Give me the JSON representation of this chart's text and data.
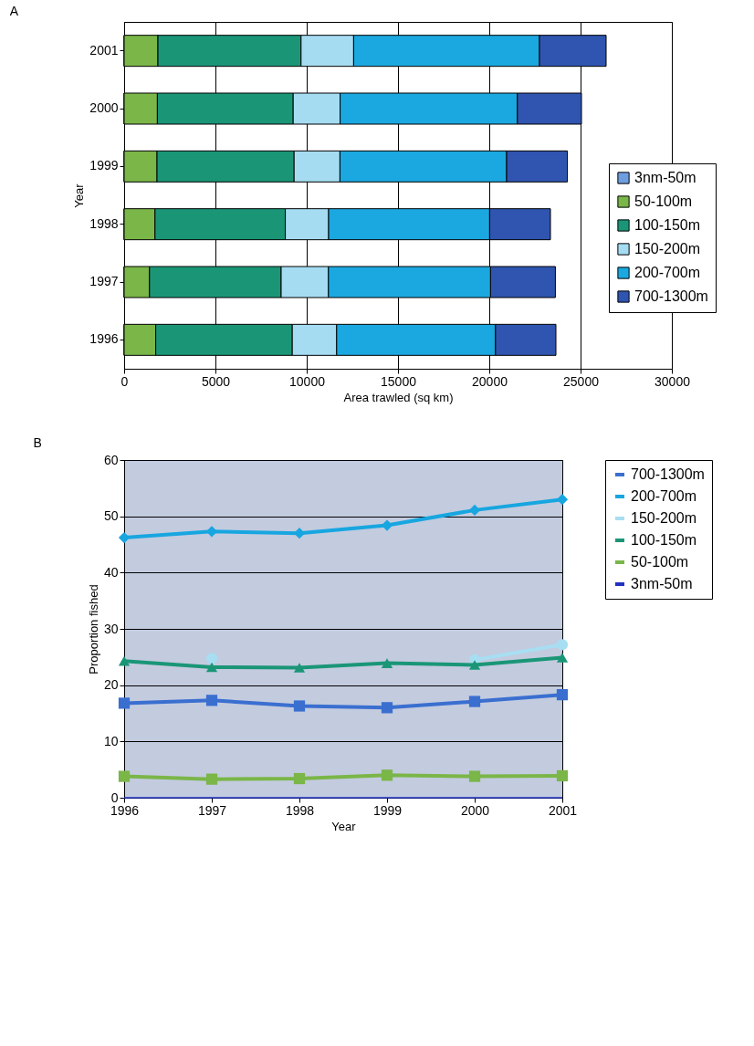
{
  "chart_data": [
    {
      "type": "bar",
      "orientation": "horizontal",
      "stacked": true,
      "annotations": [
        "A"
      ],
      "xlabel": "Area trawled (sq km)",
      "ylabel": "Year",
      "categories": [
        "2001",
        "2000",
        "1999",
        "1998",
        "1997",
        "1996"
      ],
      "series": [
        {
          "name": "3nm-50m",
          "color": "#6f9ee0",
          "values": [
            0,
            0,
            0,
            0,
            0,
            0
          ]
        },
        {
          "name": "50-100m",
          "color": "#7ab648",
          "values": [
            1850,
            1820,
            1800,
            1690,
            1390,
            1730
          ]
        },
        {
          "name": "100-150m",
          "color": "#1a9677",
          "values": [
            7840,
            7440,
            7510,
            7140,
            7210,
            7480
          ]
        },
        {
          "name": "150-200m",
          "color": "#a6dcf2",
          "values": [
            2880,
            2570,
            2510,
            2370,
            2590,
            2430
          ]
        },
        {
          "name": "200-700m",
          "color": "#1ba8e0",
          "values": [
            10180,
            9710,
            9130,
            8820,
            8880,
            8700
          ]
        },
        {
          "name": "700-1300m",
          "color": "#2f55b0",
          "values": [
            3650,
            3510,
            3330,
            3330,
            3550,
            3310
          ]
        }
      ],
      "xlim": [
        0,
        30000
      ],
      "xticks": [
        0,
        5000,
        10000,
        15000,
        20000,
        25000,
        30000
      ],
      "grid": "x",
      "legend": "bottom right"
    },
    {
      "type": "line",
      "annotations": [
        "B"
      ],
      "xlabel": "Year",
      "ylabel": "Proportion fished",
      "x": [
        1996,
        1997,
        1998,
        1999,
        2000,
        2001
      ],
      "series": [
        {
          "name": "700-1300m",
          "color": "#3a6fd0",
          "marker": "square",
          "values": [
            16.8,
            17.3,
            16.3,
            16.0,
            17.1,
            18.3
          ]
        },
        {
          "name": "200-700m",
          "color": "#17a6e0",
          "marker": "diamond",
          "values": [
            46.2,
            47.3,
            47.0,
            48.4,
            51.1,
            53.0
          ]
        },
        {
          "name": "150-200m",
          "color": "#a8def2",
          "marker": "circle",
          "values": [
            null,
            24.7,
            null,
            null,
            24.5,
            27.2
          ]
        },
        {
          "name": "100-150m",
          "color": "#1a9677",
          "marker": "triangle",
          "values": [
            24.3,
            23.2,
            23.1,
            23.9,
            23.6,
            24.9
          ]
        },
        {
          "name": "50-100m",
          "color": "#7ab648",
          "marker": "square",
          "values": [
            3.8,
            3.3,
            3.4,
            4.0,
            3.8,
            3.9
          ]
        },
        {
          "name": "3nm-50m",
          "color": "#2030c0",
          "marker": "none",
          "values": [
            0,
            0,
            0,
            0,
            0,
            0
          ]
        }
      ],
      "xlim": [
        1996,
        2001
      ],
      "xticks": [
        1996,
        1997,
        1998,
        1999,
        2000,
        2001
      ],
      "ylim": [
        0,
        60
      ],
      "yticks": [
        0,
        10,
        20,
        30,
        40,
        50,
        60
      ],
      "grid": "y",
      "legend": "right"
    }
  ]
}
